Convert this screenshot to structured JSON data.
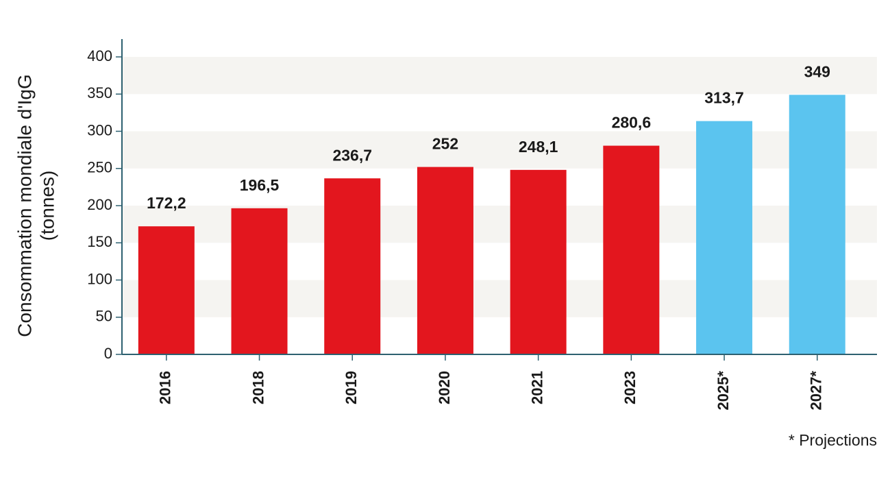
{
  "chart_data": {
    "type": "bar",
    "ylabel": [
      "Consommation mondiale d'IgG",
      "(tonnes)"
    ],
    "categories": [
      "2016",
      "2018",
      "2019",
      "2020",
      "2021",
      "2023",
      "2025*",
      "2027*"
    ],
    "values": [
      172.2,
      196.5,
      236.7,
      252,
      248.1,
      280.6,
      313.7,
      349
    ],
    "value_labels": [
      "172,2",
      "196,5",
      "236,7",
      "252",
      "248,1",
      "280,6",
      "313,7",
      "349"
    ],
    "colors": [
      "#e3161e",
      "#e3161e",
      "#e3161e",
      "#e3161e",
      "#e3161e",
      "#e3161e",
      "#5bc4ef",
      "#5bc4ef"
    ],
    "ylim": [
      0,
      400
    ],
    "yticks": [
      0,
      50,
      100,
      150,
      200,
      250,
      300,
      350,
      400
    ],
    "grid": true,
    "note": "* Projections"
  }
}
